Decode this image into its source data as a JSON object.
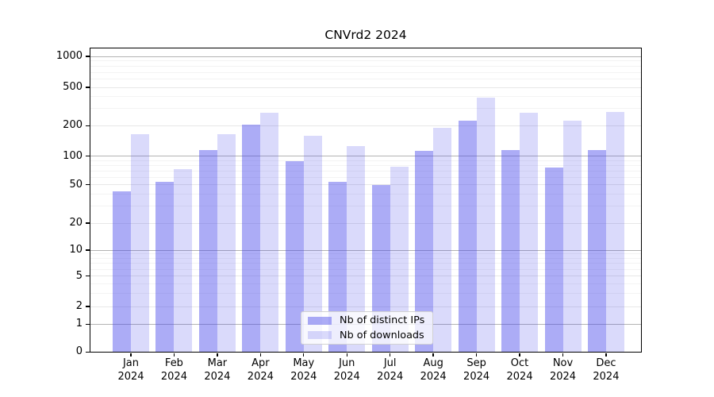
{
  "chart_data": {
    "type": "bar",
    "title": "CNVrd2 2024",
    "categories": [
      "Jan 2024",
      "Feb 2024",
      "Mar 2024",
      "Apr 2024",
      "May 2024",
      "Jun 2024",
      "Jul 2024",
      "Aug 2024",
      "Sep 2024",
      "Oct 2024",
      "Nov 2024",
      "Dec 2024"
    ],
    "series": [
      {
        "name": "Nb of distinct IPs",
        "color_hex": "#a6a6f4",
        "css_color": "rgba(70,70,235,0.45)",
        "values": [
          43,
          54,
          115,
          205,
          88,
          54,
          50,
          113,
          225,
          115,
          76,
          115
        ]
      },
      {
        "name": "Nb of downloads",
        "color_hex": "#d9d9f8",
        "css_color": "rgba(70,70,235,0.2)",
        "values": [
          165,
          73,
          165,
          270,
          160,
          126,
          78,
          190,
          390,
          270,
          225,
          280
        ]
      }
    ],
    "yticks": [
      0,
      1,
      2,
      5,
      10,
      20,
      50,
      100,
      200,
      500,
      1000
    ],
    "ytick_labels": [
      "0",
      "1",
      "2",
      "5",
      "10",
      "20",
      "50",
      "100",
      "200",
      "500",
      "1000"
    ],
    "minor_gridlines": [
      3,
      4,
      6,
      7,
      8,
      9,
      30,
      40,
      60,
      70,
      80,
      90,
      300,
      400,
      600,
      700,
      800,
      900
    ],
    "major_gridlines": [
      1,
      10,
      100,
      1000
    ],
    "yscale": "log-like (1-2-5 tick sequence with linear 0 segment)",
    "ylim": [
      0,
      1300
    ],
    "grid": "horizontal only, majors gray + minors very faint",
    "legend_position": "lower center, inside axes",
    "grid_colors": {
      "major": "#b3b3b3",
      "labeled_minor": "#e7e7e7",
      "minor": "#f3f3f3"
    }
  }
}
